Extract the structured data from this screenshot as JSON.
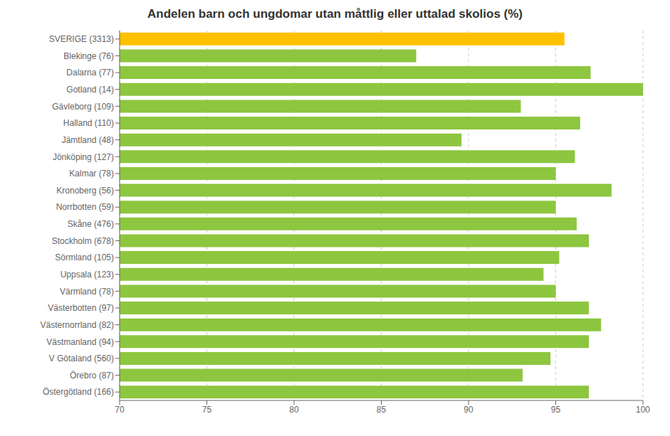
{
  "chart_data": {
    "type": "bar",
    "title": "Andelen barn och ungdomar utan måttlig eller uttalad skolios (%)",
    "orientation": "horizontal",
    "categories": [
      "SVERIGE (3313)",
      "Blekinge (76)",
      "Dalarna (77)",
      "Gotland (14)",
      "Gävleborg (109)",
      "Halland (110)",
      "Jämtland (48)",
      "Jönköping (127)",
      "Kalmar (78)",
      "Kronoberg (56)",
      "Norrbotten (59)",
      "Skåne (476)",
      "Stockholm (678)",
      "Sörmland (105)",
      "Uppsala (123)",
      "Värmland (78)",
      "Västerbotten (97)",
      "Västernorrland (82)",
      "Västmanland (94)",
      "V Götaland (560)",
      "Örebro (87)",
      "Östergötland (166)"
    ],
    "values": [
      95.5,
      87.0,
      97.0,
      100.0,
      93.0,
      96.4,
      89.6,
      96.1,
      95.0,
      98.2,
      95.0,
      96.2,
      96.9,
      95.2,
      94.3,
      95.0,
      96.9,
      97.6,
      96.9,
      94.7,
      93.1,
      96.9
    ],
    "colors": [
      "#FFC000",
      "#8DC63F",
      "#8DC63F",
      "#8DC63F",
      "#8DC63F",
      "#8DC63F",
      "#8DC63F",
      "#8DC63F",
      "#8DC63F",
      "#8DC63F",
      "#8DC63F",
      "#8DC63F",
      "#8DC63F",
      "#8DC63F",
      "#8DC63F",
      "#8DC63F",
      "#8DC63F",
      "#8DC63F",
      "#8DC63F",
      "#8DC63F",
      "#8DC63F",
      "#8DC63F"
    ],
    "xlim": [
      70,
      100
    ],
    "xticks": [
      70,
      75,
      80,
      85,
      90,
      95,
      100
    ],
    "grid": true
  }
}
